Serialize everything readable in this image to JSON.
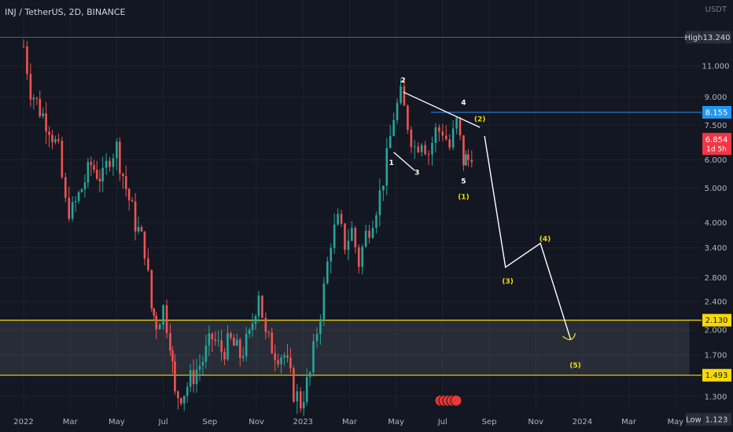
{
  "header": {
    "symbol": "INJ / TetherUS, 2D, BINANCE",
    "currency": "USDT"
  },
  "colors": {
    "bg": "#131722",
    "up": "#26a69a",
    "down": "#ef5350",
    "grid": "#1e222d",
    "axis_text": "#b2b5be",
    "yellow": "#f5d90a",
    "blue": "#2196f3",
    "white": "#ffffff",
    "red_badge": "#f23645"
  },
  "chart_data": {
    "type": "candlestick",
    "scale": "log",
    "ylim": [
      1.05,
      14.2
    ],
    "y_ticks": [
      "11.000",
      "9.000",
      "7.500",
      "6.000",
      "5.000",
      "4.000",
      "3.400",
      "2.800",
      "2.400",
      "2.000",
      "1.700",
      "1.300"
    ],
    "y_tick_values": [
      11,
      9,
      7.5,
      6,
      5,
      4,
      3.4,
      2.8,
      2.4,
      2,
      1.7,
      1.3
    ],
    "x_ticks": [
      "2022",
      "Mar",
      "May",
      "Jul",
      "Sep",
      "Nov",
      "2023",
      "Mar",
      "May",
      "Jul",
      "Sep",
      "Nov",
      "2024",
      "Mar",
      "May"
    ],
    "x_tick_index": [
      0,
      1,
      2,
      3,
      4,
      5,
      6,
      7,
      8,
      9,
      10,
      11,
      12,
      13,
      14
    ],
    "price_labels": [
      {
        "name": "High",
        "text": "13.240",
        "value": 13.24,
        "style": "high"
      },
      {
        "name": "resistance",
        "text": "8.155",
        "value": 8.155,
        "style": "blue"
      },
      {
        "name": "current",
        "text": "6.854",
        "sub": "1d 5h",
        "value": 6.854,
        "style": "red"
      },
      {
        "name": "zone-top",
        "text": "2.130",
        "value": 2.13,
        "style": "yellow"
      },
      {
        "name": "zone-bottom",
        "text": "1.493",
        "value": 1.493,
        "style": "yellow"
      },
      {
        "name": "Low",
        "text": "1.123",
        "value": 1.123,
        "style": "low"
      }
    ],
    "price_label_prefixes": {
      "High": "High",
      "Low": "Low"
    },
    "support_zone": {
      "top": 2.13,
      "bottom": 1.493,
      "x_end_month": 14.3
    },
    "resistance_line": {
      "value": 8.155,
      "x_start_month": 8.75
    },
    "wave_labels": [
      {
        "text": "2",
        "color": "white",
        "m": 8.15,
        "v": 9.9
      },
      {
        "text": "4",
        "color": "white",
        "m": 9.45,
        "v": 8.55
      },
      {
        "text": "1",
        "color": "white",
        "m": 7.9,
        "v": 5.8
      },
      {
        "text": "3",
        "color": "white",
        "m": 8.45,
        "v": 5.45
      },
      {
        "text": "5",
        "color": "white",
        "m": 9.45,
        "v": 5.15
      },
      {
        "text": "(2)",
        "color": "yellow",
        "m": 9.8,
        "v": 7.7
      },
      {
        "text": "(1)",
        "color": "yellow",
        "m": 9.45,
        "v": 4.65
      },
      {
        "text": "(3)",
        "color": "yellow",
        "m": 10.4,
        "v": 2.7
      },
      {
        "text": "(4)",
        "color": "yellow",
        "m": 11.2,
        "v": 3.55
      },
      {
        "text": "(5)",
        "color": "yellow",
        "m": 11.85,
        "v": 1.57
      }
    ],
    "projection_path": [
      {
        "m": 9.9,
        "v": 7.0
      },
      {
        "m": 10.35,
        "v": 3.0
      },
      {
        "m": 11.1,
        "v": 3.5
      },
      {
        "m": 11.75,
        "v": 1.88
      }
    ],
    "candles": [
      {
        "m": 0.0,
        "v": 12.5
      },
      {
        "m": 0.15,
        "v": 9.5
      },
      {
        "m": 0.35,
        "v": 8.3
      },
      {
        "m": 0.55,
        "v": 7.5
      },
      {
        "m": 0.75,
        "v": 6.3
      },
      {
        "m": 0.9,
        "v": 4.5
      },
      {
        "m": 1.05,
        "v": 4.3
      },
      {
        "m": 1.25,
        "v": 5.0
      },
      {
        "m": 1.45,
        "v": 5.8
      },
      {
        "m": 1.7,
        "v": 5.3
      },
      {
        "m": 1.85,
        "v": 6.2
      },
      {
        "m": 2.0,
        "v": 6.5
      },
      {
        "m": 2.2,
        "v": 5.0
      },
      {
        "m": 2.4,
        "v": 4.0
      },
      {
        "m": 2.6,
        "v": 3.4
      },
      {
        "m": 2.75,
        "v": 2.3
      },
      {
        "m": 2.85,
        "v": 2.1
      },
      {
        "m": 3.0,
        "v": 2.3
      },
      {
        "m": 3.15,
        "v": 1.9
      },
      {
        "m": 3.25,
        "v": 1.3
      },
      {
        "m": 3.45,
        "v": 1.35
      },
      {
        "m": 3.65,
        "v": 1.5
      },
      {
        "m": 3.85,
        "v": 1.65
      },
      {
        "m": 4.05,
        "v": 1.9
      },
      {
        "m": 4.25,
        "v": 1.75
      },
      {
        "m": 4.45,
        "v": 1.85
      },
      {
        "m": 4.65,
        "v": 1.7
      },
      {
        "m": 4.85,
        "v": 1.9
      },
      {
        "m": 5.05,
        "v": 2.6
      },
      {
        "m": 5.2,
        "v": 1.9
      },
      {
        "m": 5.4,
        "v": 1.75
      },
      {
        "m": 5.6,
        "v": 1.7
      },
      {
        "m": 5.8,
        "v": 1.35
      },
      {
        "m": 5.95,
        "v": 1.25
      },
      {
        "m": 6.15,
        "v": 1.5
      },
      {
        "m": 6.3,
        "v": 2.0
      },
      {
        "m": 6.45,
        "v": 2.6
      },
      {
        "m": 6.6,
        "v": 3.6
      },
      {
        "m": 6.75,
        "v": 4.0
      },
      {
        "m": 6.9,
        "v": 3.5
      },
      {
        "m": 7.05,
        "v": 3.8
      },
      {
        "m": 7.2,
        "v": 3.1
      },
      {
        "m": 7.35,
        "v": 3.7
      },
      {
        "m": 7.5,
        "v": 4.2
      },
      {
        "m": 7.65,
        "v": 4.8
      },
      {
        "m": 7.8,
        "v": 6.0
      },
      {
        "m": 7.95,
        "v": 8.0
      },
      {
        "m": 8.1,
        "v": 9.0
      },
      {
        "m": 8.25,
        "v": 7.6
      },
      {
        "m": 8.4,
        "v": 6.5
      },
      {
        "m": 8.55,
        "v": 7.0
      },
      {
        "m": 8.7,
        "v": 6.3
      },
      {
        "m": 8.85,
        "v": 7.2
      },
      {
        "m": 9.0,
        "v": 7.3
      },
      {
        "m": 9.15,
        "v": 6.5
      },
      {
        "m": 9.3,
        "v": 7.6
      },
      {
        "m": 9.45,
        "v": 6.0
      },
      {
        "m": 9.55,
        "v": 6.0
      },
      {
        "m": 9.7,
        "v": 6.85
      }
    ]
  }
}
